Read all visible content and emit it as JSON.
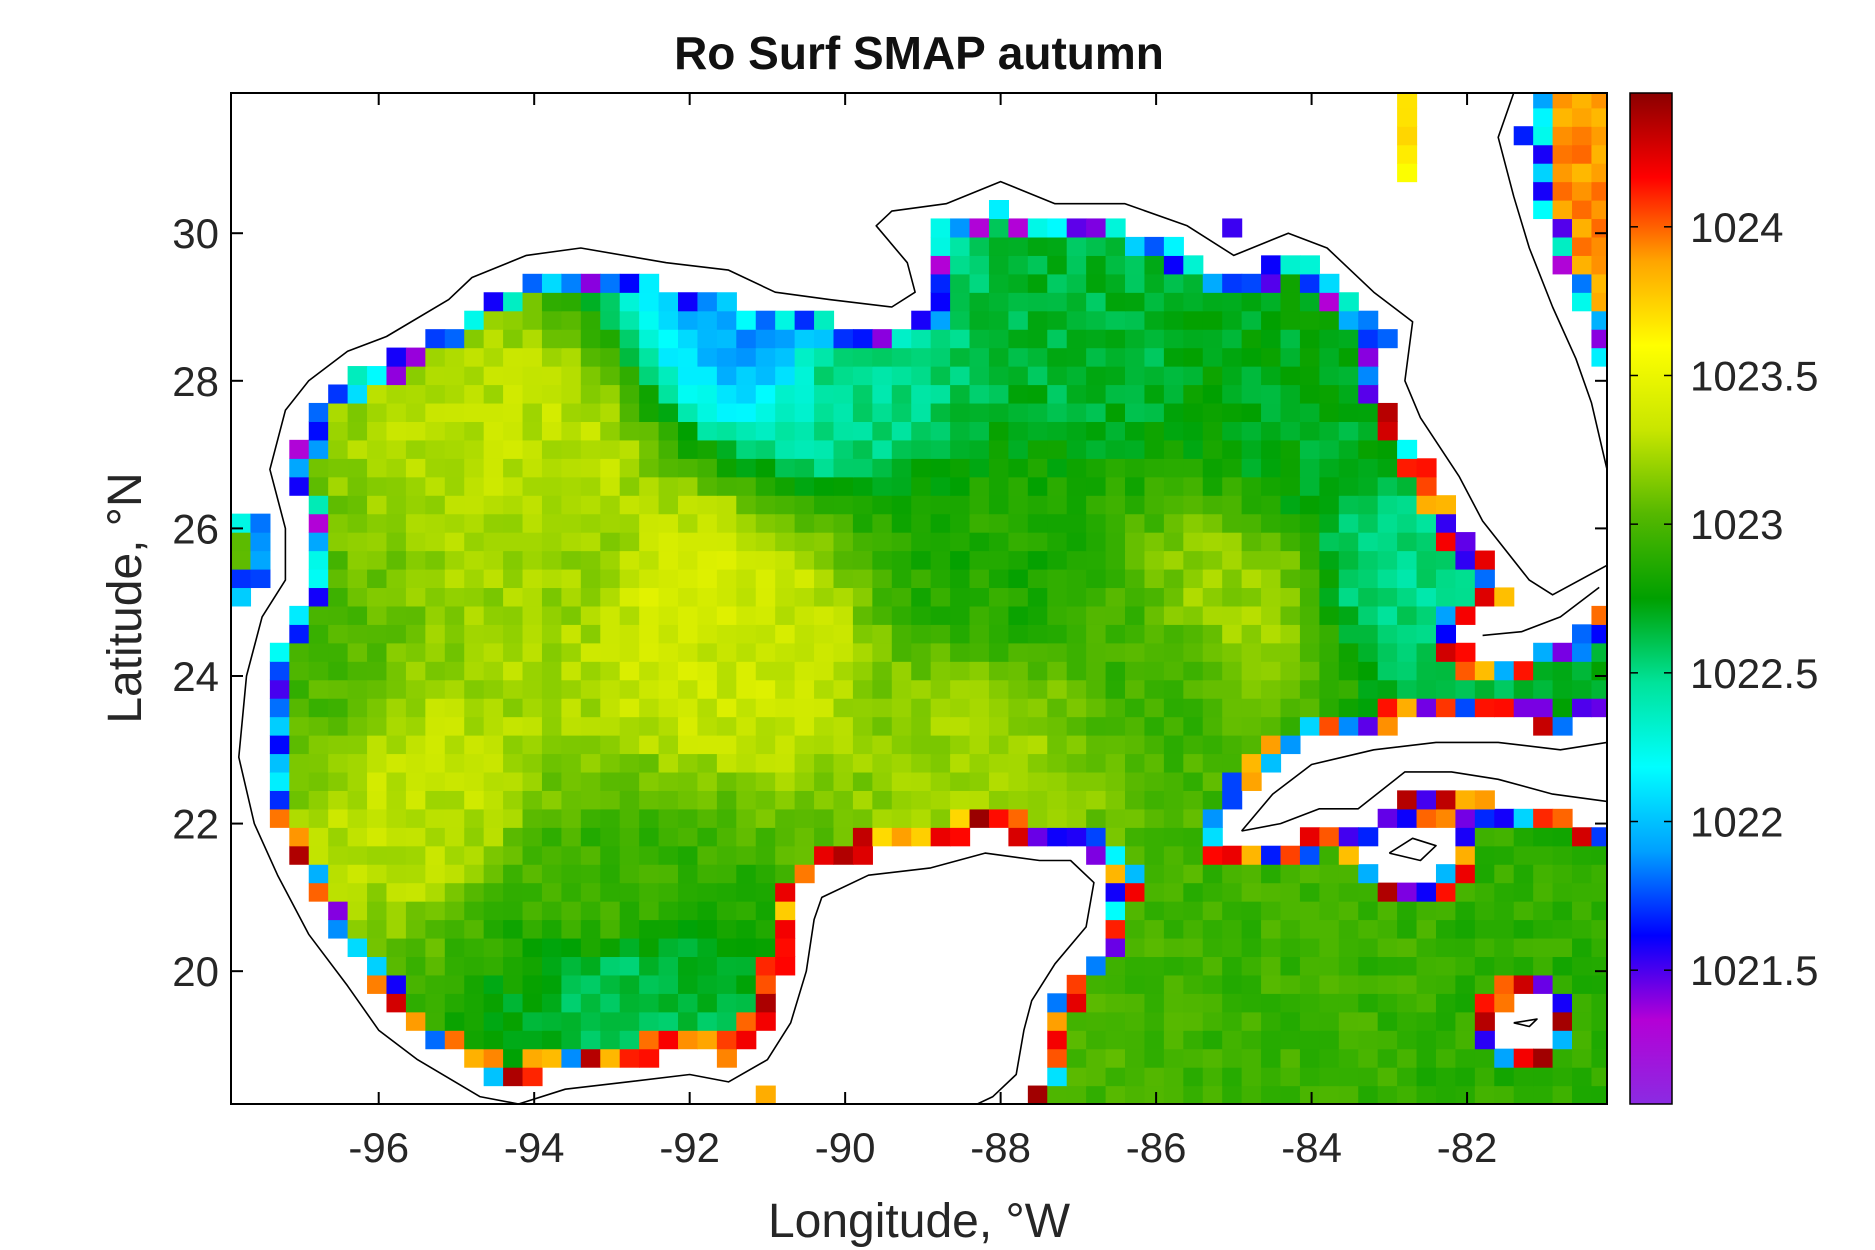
{
  "chart_data": {
    "type": "heatmap",
    "title": "Ro Surf SMAP autumn",
    "xlabel": "Longitude, °W",
    "ylabel": "Latitude, °N",
    "xlim": [
      -97.9,
      -80.2
    ],
    "ylim": [
      18.2,
      31.9
    ],
    "x_ticks": [
      -96,
      -94,
      -92,
      -90,
      -88,
      -86,
      -84,
      -82
    ],
    "y_ticks": [
      20,
      22,
      24,
      26,
      28,
      30
    ],
    "grid": false,
    "colorbar": {
      "label": "",
      "range": [
        1021.05,
        1024.45
      ],
      "ticks": [
        1021.5,
        1022,
        1022.5,
        1023,
        1023.5,
        1024
      ],
      "colormap": "rainbow-jet",
      "colors": [
        "#8b2be2",
        "#b400d6",
        "#0000ff",
        "#00a0ff",
        "#00ffff",
        "#00e39a",
        "#00a000",
        "#55b800",
        "#c8e600",
        "#ffff00",
        "#ffa500",
        "#ff0000",
        "#8b0000"
      ]
    },
    "cell_size_deg": 0.25,
    "background_field_note": "Water density field (approx. 1022-1023.3) over the Gulf of Mexico; NaN over land",
    "anchors": [
      {
        "lon": -94,
        "lat": 27,
        "v": 1023.3
      },
      {
        "lon": -93.5,
        "lat": 25.5,
        "v": 1023.2
      },
      {
        "lon": -92,
        "lat": 25,
        "v": 1023.4
      },
      {
        "lon": -91.5,
        "lat": 24.5,
        "v": 1023.35
      },
      {
        "lon": -95.5,
        "lat": 22.5,
        "v": 1023.3
      },
      {
        "lon": -93,
        "lat": 21,
        "v": 1022.95
      },
      {
        "lon": -92.8,
        "lat": 19.8,
        "v": 1022.6
      },
      {
        "lon": -90,
        "lat": 28.2,
        "v": 1022.5
      },
      {
        "lon": -91,
        "lat": 28.7,
        "v": 1021.9
      },
      {
        "lon": -87,
        "lat": 28.5,
        "v": 1022.65
      },
      {
        "lon": -84,
        "lat": 27.5,
        "v": 1022.7
      },
      {
        "lon": -82.8,
        "lat": 25.5,
        "v": 1022.5
      },
      {
        "lon": -88,
        "lat": 25.5,
        "v": 1022.85
      },
      {
        "lon": -86,
        "lat": 24,
        "v": 1022.95
      },
      {
        "lon": -85,
        "lat": 25,
        "v": 1023.2
      },
      {
        "lon": -88,
        "lat": 23,
        "v": 1023.2
      },
      {
        "lon": -84,
        "lat": 20.5,
        "v": 1022.95
      },
      {
        "lon": -81,
        "lat": 19.5,
        "v": 1022.9
      },
      {
        "lon": -97,
        "lat": 24,
        "v": 1023.0
      },
      {
        "lon": -80.6,
        "lat": 30.5,
        "v": 1023.9
      }
    ]
  }
}
